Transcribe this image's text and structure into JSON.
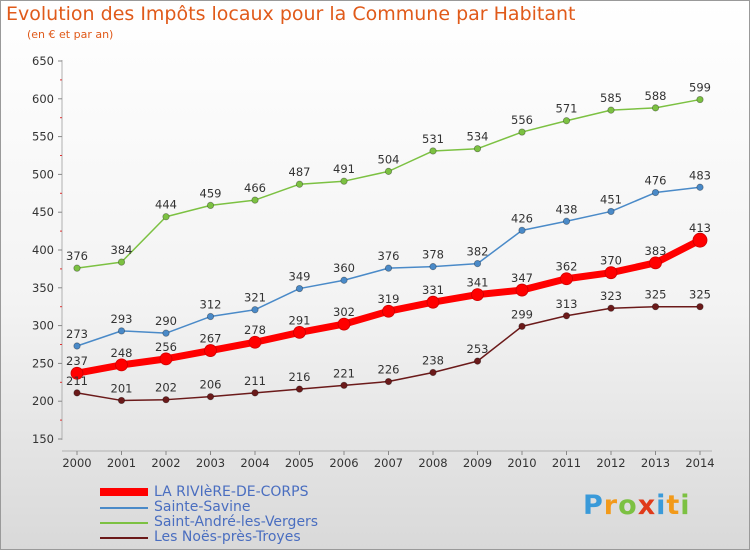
{
  "header": {
    "title": "Evolution des Impôts locaux pour la Commune par Habitant",
    "subtitle": "(en € et par an)"
  },
  "logo": {
    "letters": [
      "P",
      "r",
      "o",
      "x",
      "i",
      "t",
      "i"
    ],
    "colors": [
      "#3a9ad9",
      "#f29a1a",
      "#7cc142",
      "#e03a1a",
      "#3a9ad9",
      "#f29a1a",
      "#7cc142"
    ]
  },
  "chart_data": {
    "type": "line",
    "title": "Evolution des Impôts locaux pour la Commune par Habitant",
    "subtitle": "(en € et par an)",
    "x": [
      "2000",
      "2001",
      "2002",
      "2003",
      "2004",
      "2005",
      "2006",
      "2007",
      "2008",
      "2009",
      "2010",
      "2011",
      "2012",
      "2013",
      "2014"
    ],
    "ylim": [
      150,
      650
    ],
    "yticks": [
      150,
      200,
      250,
      300,
      350,
      400,
      450,
      500,
      550,
      600,
      650
    ],
    "grid": false,
    "legend_position": "bottom-left",
    "series": [
      {
        "name": "LA RIVIèRE-DE-CORPS",
        "color": "#ff0000",
        "emphasis": true,
        "values": [
          237,
          248,
          256,
          267,
          278,
          291,
          302,
          319,
          331,
          341,
          347,
          362,
          370,
          383,
          413
        ]
      },
      {
        "name": "Sainte-Savine",
        "color": "#4a8ac8",
        "emphasis": false,
        "values": [
          273,
          293,
          290,
          312,
          321,
          349,
          360,
          376,
          378,
          382,
          426,
          438,
          451,
          476,
          483
        ]
      },
      {
        "name": "Saint-André-les-Vergers",
        "color": "#7cc142",
        "emphasis": false,
        "values": [
          376,
          384,
          444,
          459,
          466,
          487,
          491,
          504,
          531,
          534,
          556,
          571,
          585,
          588,
          599
        ]
      },
      {
        "name": "Les Noës-près-Troyes",
        "color": "#6b1a1a",
        "emphasis": false,
        "values": [
          211,
          201,
          202,
          206,
          211,
          216,
          221,
          226,
          238,
          253,
          299,
          313,
          323,
          325,
          325
        ]
      }
    ]
  }
}
